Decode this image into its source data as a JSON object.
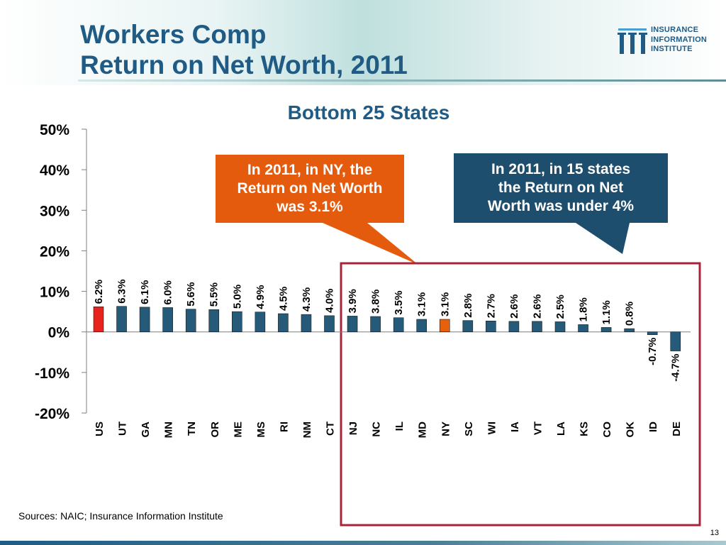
{
  "slide": {
    "title_line1": "Workers Comp",
    "title_line2": "Return on Net Worth, 2011",
    "logo_lines": [
      "INSURANCE",
      "INFORMATION",
      "INSTITUTE"
    ],
    "sources": "Sources:  NAIC; Insurance Information Institute",
    "page_number": "13"
  },
  "callouts": {
    "left": [
      "In 2011, in NY, the",
      "Return on Net Worth",
      "was 3.1%"
    ],
    "right": [
      "In 2011, in 15 states",
      "the Return on Net",
      "Worth was under 4%"
    ]
  },
  "colors": {
    "bar": "#255a78",
    "us_bar": "#e8231d",
    "ny_bar": "#e8600c",
    "title": "#1f5b84",
    "left_callout": "#e55b0e",
    "right_callout": "#1d4e6e",
    "highlight_box": "#a8243a"
  },
  "chart_data": {
    "type": "bar",
    "title": "Bottom 25 States",
    "categories": [
      "US",
      "UT",
      "GA",
      "MN",
      "TN",
      "OR",
      "ME",
      "MS",
      "RI",
      "NM",
      "CT",
      "NJ",
      "NC",
      "IL",
      "MD",
      "NY",
      "SC",
      "WI",
      "IA",
      "VT",
      "LA",
      "KS",
      "CO",
      "OK",
      "ID",
      "DE"
    ],
    "values": [
      6.2,
      6.3,
      6.1,
      6.0,
      5.6,
      5.5,
      5.0,
      4.9,
      4.5,
      4.3,
      4.0,
      3.9,
      3.8,
      3.5,
      3.1,
      3.1,
      2.8,
      2.7,
      2.6,
      2.6,
      2.5,
      1.8,
      1.1,
      0.8,
      -0.7,
      -4.7
    ],
    "value_labels": [
      "6.2%",
      "6.3%",
      "6.1%",
      "6.0%",
      "5.6%",
      "5.5%",
      "5.0%",
      "4.9%",
      "4.5%",
      "4.3%",
      "4.0%",
      "3.9%",
      "3.8%",
      "3.5%",
      "3.1%",
      "3.1%",
      "2.8%",
      "2.7%",
      "2.6%",
      "2.6%",
      "2.5%",
      "1.8%",
      "1.1%",
      "0.8%",
      "-0.7%",
      "-4.7%"
    ],
    "ylim": [
      -20,
      50
    ],
    "yticks": [
      -20,
      -10,
      0,
      10,
      20,
      30,
      40,
      50
    ],
    "ytick_labels": [
      "-20%",
      "-10%",
      "0%",
      "10%",
      "20%",
      "30%",
      "40%",
      "50%"
    ],
    "highlighted_range": [
      "NJ",
      "DE"
    ],
    "grid": false,
    "legend": "none"
  }
}
